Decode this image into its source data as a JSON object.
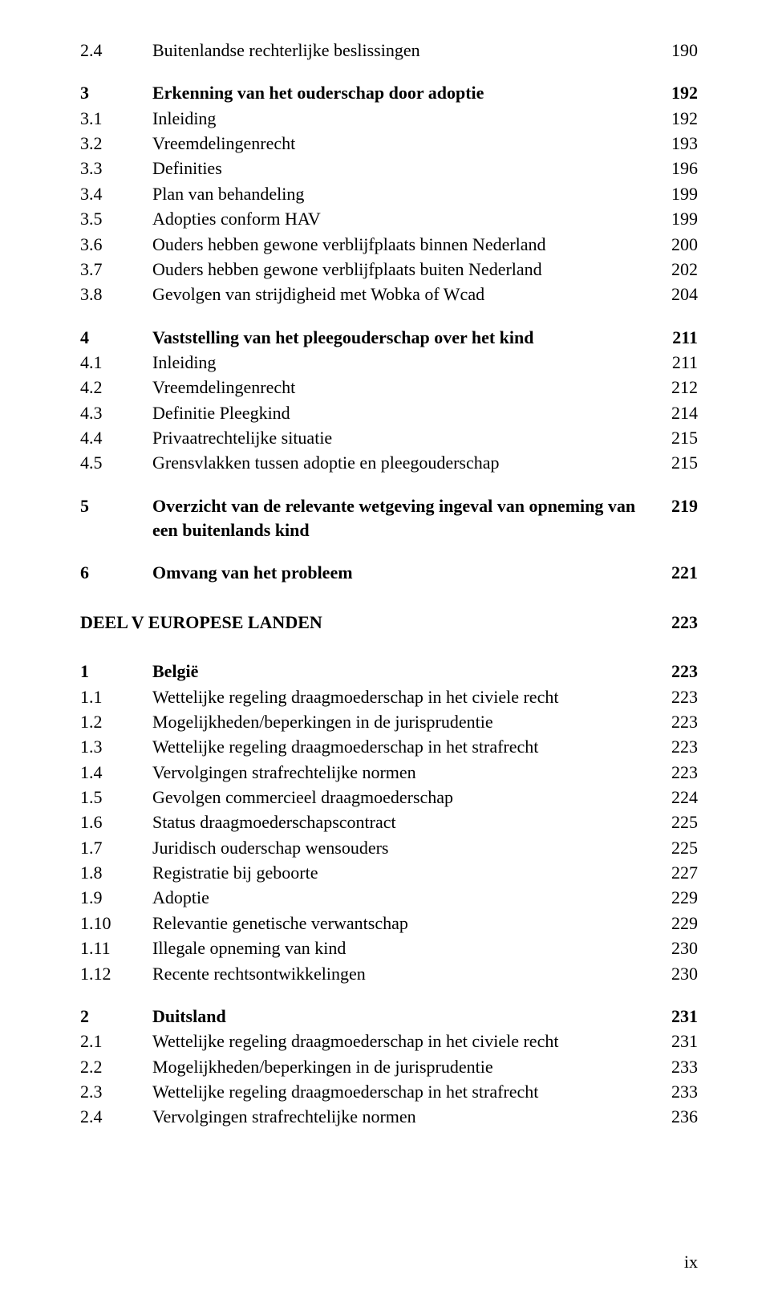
{
  "entries": [
    {
      "num": "2.4",
      "title": "Buitenlandse rechterlijke beslissingen",
      "page": "190",
      "bold": false,
      "gapAfter": "med"
    },
    {
      "num": "3",
      "title": "Erkenning van het ouderschap door adoptie",
      "page": "192",
      "bold": true,
      "gapAfter": ""
    },
    {
      "num": "3.1",
      "title": "Inleiding",
      "page": "192",
      "bold": false,
      "gapAfter": ""
    },
    {
      "num": "3.2",
      "title": "Vreemdelingenrecht",
      "page": "193",
      "bold": false,
      "gapAfter": ""
    },
    {
      "num": "3.3",
      "title": "Definities",
      "page": "196",
      "bold": false,
      "gapAfter": ""
    },
    {
      "num": "3.4",
      "title": "Plan van behandeling",
      "page": "199",
      "bold": false,
      "gapAfter": ""
    },
    {
      "num": "3.5",
      "title": "Adopties conform HAV",
      "page": "199",
      "bold": false,
      "gapAfter": ""
    },
    {
      "num": "3.6",
      "title": "Ouders hebben gewone verblijfplaats binnen Nederland",
      "page": "200",
      "bold": false,
      "gapAfter": ""
    },
    {
      "num": "3.7",
      "title": "Ouders hebben gewone verblijfplaats buiten Nederland",
      "page": "202",
      "bold": false,
      "gapAfter": ""
    },
    {
      "num": "3.8",
      "title": "Gevolgen van strijdigheid met Wobka of Wcad",
      "page": "204",
      "bold": false,
      "gapAfter": "med"
    },
    {
      "num": "4",
      "title": "Vaststelling van het pleegouderschap over het kind",
      "page": "211",
      "bold": true,
      "gapAfter": ""
    },
    {
      "num": "4.1",
      "title": "Inleiding",
      "page": "211",
      "bold": false,
      "gapAfter": ""
    },
    {
      "num": "4.2",
      "title": "Vreemdelingenrecht",
      "page": "212",
      "bold": false,
      "gapAfter": ""
    },
    {
      "num": "4.3",
      "title": "Definitie Pleegkind",
      "page": "214",
      "bold": false,
      "gapAfter": ""
    },
    {
      "num": "4.4",
      "title": "Privaatrechtelijke situatie",
      "page": "215",
      "bold": false,
      "gapAfter": ""
    },
    {
      "num": "4.5",
      "title": "Grensvlakken tussen adoptie en pleegouderschap",
      "page": "215",
      "bold": false,
      "gapAfter": "med"
    },
    {
      "num": "5",
      "title": "Overzicht van de relevante wetgeving ingeval van opneming van een buitenlands kind",
      "page": "219",
      "bold": true,
      "gapAfter": "med"
    },
    {
      "num": "6",
      "title": "Omvang van het probleem",
      "page": "221",
      "bold": true,
      "gapAfter": "large"
    },
    {
      "num": "",
      "title": "DEEL V EUROPESE LANDEN",
      "page": "223",
      "bold": true,
      "gapAfter": "large",
      "fullLeft": true
    },
    {
      "num": "1",
      "title": "België",
      "page": "223",
      "bold": true,
      "gapAfter": ""
    },
    {
      "num": "1.1",
      "title": "Wettelijke regeling draagmoederschap in het civiele recht",
      "page": "223",
      "bold": false,
      "gapAfter": ""
    },
    {
      "num": "1.2",
      "title": "Mogelijkheden/beperkingen in de jurisprudentie",
      "page": "223",
      "bold": false,
      "gapAfter": ""
    },
    {
      "num": "1.3",
      "title": "Wettelijke regeling draagmoederschap in het strafrecht",
      "page": "223",
      "bold": false,
      "gapAfter": ""
    },
    {
      "num": "1.4",
      "title": "Vervolgingen strafrechtelijke normen",
      "page": "223",
      "bold": false,
      "gapAfter": ""
    },
    {
      "num": "1.5",
      "title": "Gevolgen commercieel draagmoederschap",
      "page": "224",
      "bold": false,
      "gapAfter": ""
    },
    {
      "num": "1.6",
      "title": "Status draagmoederschapscontract",
      "page": "225",
      "bold": false,
      "gapAfter": ""
    },
    {
      "num": "1.7",
      "title": "Juridisch ouderschap wensouders",
      "page": "225",
      "bold": false,
      "gapAfter": ""
    },
    {
      "num": "1.8",
      "title": "Registratie bij geboorte",
      "page": "227",
      "bold": false,
      "gapAfter": ""
    },
    {
      "num": "1.9",
      "title": "Adoptie",
      "page": "229",
      "bold": false,
      "gapAfter": ""
    },
    {
      "num": "1.10",
      "title": "Relevantie genetische verwantschap",
      "page": "229",
      "bold": false,
      "gapAfter": ""
    },
    {
      "num": "1.11",
      "title": "Illegale opneming van kind",
      "page": "230",
      "bold": false,
      "gapAfter": ""
    },
    {
      "num": "1.12",
      "title": "Recente rechtsontwikkelingen",
      "page": "230",
      "bold": false,
      "gapAfter": "med"
    },
    {
      "num": "2",
      "title": "Duitsland",
      "page": "231",
      "bold": true,
      "gapAfter": ""
    },
    {
      "num": "2.1",
      "title": "Wettelijke regeling draagmoederschap in het civiele recht",
      "page": "231",
      "bold": false,
      "gapAfter": ""
    },
    {
      "num": "2.2",
      "title": "Mogelijkheden/beperkingen in de jurisprudentie",
      "page": "233",
      "bold": false,
      "gapAfter": ""
    },
    {
      "num": "2.3",
      "title": "Wettelijke regeling draagmoederschap in het strafrecht",
      "page": "233",
      "bold": false,
      "gapAfter": ""
    },
    {
      "num": "2.4",
      "title": "Vervolgingen strafrechtelijke normen",
      "page": "236",
      "bold": false,
      "gapAfter": ""
    }
  ],
  "footer": "ix"
}
